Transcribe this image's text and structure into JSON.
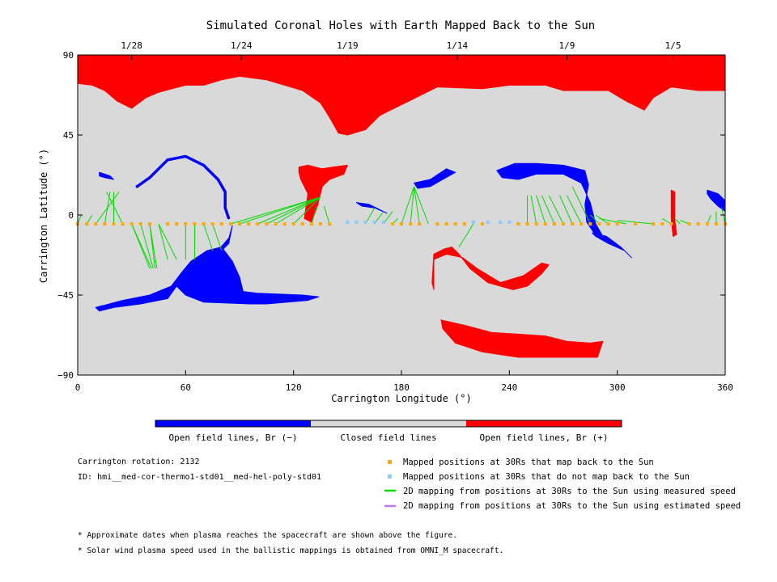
{
  "chart_data": {
    "type": "scatter",
    "title": "Simulated Coronal Holes with Earth Mapped Back to the Sun",
    "xlabel": "Carrington Longitude (°)",
    "ylabel": "Carrington Latitude (°)",
    "xlim": [
      0,
      360
    ],
    "ylim": [
      -90,
      90
    ],
    "xticks": [
      0,
      60,
      120,
      180,
      240,
      300,
      360
    ],
    "yticks": [
      -90,
      -45,
      0,
      45,
      90
    ],
    "xtick_labels": [
      "0",
      "60",
      "120",
      "180",
      "240",
      "300",
      "360"
    ],
    "ytick_labels": [
      "−90",
      "−45",
      "0",
      "45",
      "90"
    ],
    "top_axis": {
      "labels": [
        "1/28",
        "1/24",
        "1/19",
        "1/14",
        "1/9",
        "1/5"
      ],
      "longitudes": [
        30,
        91,
        150,
        211,
        272,
        331
      ]
    },
    "colorbar": {
      "labels": [
        "Open field lines, Br (−)",
        "Closed field lines",
        "Open field lines, Br (+)"
      ],
      "colors": [
        "#0000ff",
        "#d9d9d9",
        "#ff0000"
      ]
    },
    "regions": [
      {
        "polarity": "positive",
        "color": "#ff0000",
        "points": [
          [
            0,
            90
          ],
          [
            360,
            90
          ],
          [
            360,
            70
          ],
          [
            345,
            70
          ],
          [
            330,
            72
          ],
          [
            320,
            66
          ],
          [
            315,
            59
          ],
          [
            305,
            64
          ],
          [
            295,
            70
          ],
          [
            270,
            70
          ],
          [
            260,
            73
          ],
          [
            240,
            73
          ],
          [
            225,
            71
          ],
          [
            200,
            72
          ],
          [
            190,
            67
          ],
          [
            180,
            62
          ],
          [
            168,
            56
          ],
          [
            160,
            48
          ],
          [
            150,
            45
          ],
          [
            145,
            46
          ],
          [
            140,
            55
          ],
          [
            135,
            63
          ],
          [
            125,
            70
          ],
          [
            105,
            76
          ],
          [
            90,
            78
          ],
          [
            80,
            76
          ],
          [
            70,
            73
          ],
          [
            60,
            73
          ],
          [
            45,
            69
          ],
          [
            38,
            66
          ],
          [
            30,
            60
          ],
          [
            22,
            64
          ],
          [
            15,
            70
          ],
          [
            8,
            73
          ],
          [
            0,
            74
          ]
        ]
      },
      {
        "polarity": "positive",
        "color": "#ff0000",
        "points": [
          [
            123,
            27
          ],
          [
            128,
            28
          ],
          [
            136,
            26
          ],
          [
            142,
            27
          ],
          [
            150,
            28
          ],
          [
            148,
            23
          ],
          [
            140,
            20
          ],
          [
            136,
            16
          ],
          [
            133,
            4
          ],
          [
            130,
            -4
          ],
          [
            126,
            -2
          ],
          [
            128,
            12
          ],
          [
            124,
            20
          ],
          [
            123,
            24
          ]
        ]
      },
      {
        "polarity": "positive",
        "color": "#ff0000",
        "points": [
          [
            198,
            -22
          ],
          [
            204,
            -19
          ],
          [
            208,
            -18
          ],
          [
            212,
            -22
          ],
          [
            218,
            -30
          ],
          [
            228,
            -38
          ],
          [
            242,
            -42
          ],
          [
            250,
            -40
          ],
          [
            258,
            -33
          ],
          [
            262,
            -28
          ],
          [
            258,
            -27
          ],
          [
            248,
            -34
          ],
          [
            235,
            -38
          ],
          [
            222,
            -30
          ],
          [
            214,
            -24
          ],
          [
            205,
            -22
          ],
          [
            198,
            -25
          ],
          [
            198,
            -42
          ],
          [
            197,
            -38
          ]
        ]
      },
      {
        "polarity": "positive",
        "color": "#ff0000",
        "points": [
          [
            202,
            -59
          ],
          [
            215,
            -62
          ],
          [
            230,
            -66
          ],
          [
            245,
            -67
          ],
          [
            260,
            -68
          ],
          [
            272,
            -71
          ],
          [
            285,
            -72
          ],
          [
            292,
            -71
          ],
          [
            289,
            -80
          ],
          [
            270,
            -80
          ],
          [
            245,
            -80
          ],
          [
            225,
            -77
          ],
          [
            210,
            -72
          ],
          [
            203,
            -64
          ]
        ]
      },
      {
        "polarity": "positive",
        "color": "#ff0000",
        "points": [
          [
            330,
            14
          ],
          [
            332,
            13
          ],
          [
            332,
            -3
          ],
          [
            333,
            -11
          ],
          [
            331,
            -12
          ],
          [
            330,
            -2
          ]
        ]
      },
      {
        "polarity": "negative",
        "color": "#0000ff",
        "points": [
          [
            10,
            -52
          ],
          [
            25,
            -48
          ],
          [
            40,
            -45
          ],
          [
            52,
            -40
          ],
          [
            58,
            -32
          ],
          [
            63,
            -26
          ],
          [
            72,
            -20
          ],
          [
            80,
            -18
          ],
          [
            86,
            -26
          ],
          [
            90,
            -35
          ],
          [
            92,
            -43
          ],
          [
            100,
            -44
          ],
          [
            125,
            -45
          ],
          [
            134,
            -46
          ],
          [
            128,
            -48
          ],
          [
            105,
            -50
          ],
          [
            96,
            -50
          ],
          [
            70,
            -49
          ],
          [
            60,
            -45
          ],
          [
            55,
            -40
          ],
          [
            50,
            -47
          ],
          [
            35,
            -50
          ],
          [
            20,
            -52
          ],
          [
            12,
            -54
          ]
        ]
      },
      {
        "polarity": "negative",
        "color": "#ff0000",
        "points": []
      },
      {
        "polarity": "negative",
        "color": "#0000ff",
        "points": [
          [
            60,
            -34
          ],
          [
            68,
            -26
          ],
          [
            78,
            -20
          ],
          [
            84,
            -13
          ],
          [
            86,
            -6
          ],
          [
            84,
            -16
          ],
          [
            78,
            -22
          ],
          [
            68,
            -29
          ],
          [
            62,
            -36
          ]
        ]
      },
      {
        "polarity": "negative",
        "color": "#0000ff",
        "points": [
          [
            233,
            25
          ],
          [
            243,
            29
          ],
          [
            255,
            29
          ],
          [
            270,
            28
          ],
          [
            282,
            25
          ],
          [
            284,
            17
          ],
          [
            282,
            6
          ],
          [
            283,
            -4
          ],
          [
            287,
            -10
          ],
          [
            292,
            -12
          ],
          [
            288,
            -5
          ],
          [
            285,
            7
          ],
          [
            280,
            18
          ],
          [
            270,
            23
          ],
          [
            255,
            23
          ],
          [
            245,
            20
          ],
          [
            236,
            21
          ]
        ]
      },
      {
        "polarity": "negative",
        "color": "#0000ff",
        "points": [
          [
            286,
            -10
          ],
          [
            294,
            -12
          ],
          [
            302,
            -18
          ],
          [
            308,
            -24
          ],
          [
            304,
            -20
          ],
          [
            295,
            -16
          ],
          [
            288,
            -12
          ]
        ]
      },
      {
        "polarity": "negative",
        "color": "#0000ff",
        "points": [
          [
            187,
            18
          ],
          [
            196,
            20
          ],
          [
            205,
            26
          ],
          [
            210,
            24
          ],
          [
            203,
            20
          ],
          [
            196,
            16
          ],
          [
            189,
            15
          ]
        ]
      },
      {
        "polarity": "negative",
        "color": "#0000ff",
        "points": [
          [
            12,
            24
          ],
          [
            18,
            22
          ],
          [
            20,
            20
          ],
          [
            15,
            21
          ],
          [
            12,
            22
          ]
        ]
      },
      {
        "polarity": "negative",
        "color": "#0000ff",
        "points": [
          [
            350,
            14
          ],
          [
            356,
            12
          ],
          [
            360,
            8
          ],
          [
            360,
            2
          ],
          [
            356,
            5
          ],
          [
            352,
            9
          ],
          [
            350,
            12
          ]
        ]
      },
      {
        "polarity": "negative",
        "color": "#0000ff",
        "points": [
          [
            155,
            7
          ],
          [
            162,
            6
          ],
          [
            168,
            3
          ],
          [
            172,
            1
          ],
          [
            165,
            4
          ],
          [
            158,
            5
          ]
        ]
      }
    ],
    "arc": {
      "color": "#0000ff",
      "points": [
        [
          33,
          16
        ],
        [
          40,
          21
        ],
        [
          50,
          31
        ],
        [
          60,
          33
        ],
        [
          70,
          28
        ],
        [
          78,
          20
        ],
        [
          82,
          13
        ],
        [
          82,
          4
        ],
        [
          84,
          -2
        ]
      ]
    },
    "orange_points": {
      "name": "Mapped positions at 30Rs that map back to the Sun",
      "color": "#ffaa00",
      "lon": [
        0,
        5,
        10,
        15,
        20,
        25,
        30,
        35,
        40,
        50,
        55,
        60,
        65,
        70,
        75,
        80,
        85,
        90,
        95,
        100,
        105,
        110,
        115,
        120,
        125,
        130,
        135,
        140,
        175,
        180,
        185,
        190,
        200,
        205,
        210,
        215,
        225,
        245,
        250,
        255,
        260,
        265,
        270,
        275,
        280,
        285,
        290,
        295,
        300,
        310,
        320,
        325,
        330,
        340,
        345,
        350,
        355,
        360
      ],
      "lat": -5
    },
    "blue_points": {
      "name": "Mapped positions at 30Rs that do not map back to the Sun",
      "color": "#88ccff",
      "lon": [
        150,
        155,
        160,
        165,
        170,
        220,
        228,
        235,
        240
      ],
      "lat": -4
    },
    "mappings": {
      "name": "2D mapping from positions at 30Rs to the Sun using measured speed",
      "color": "#00dd00",
      "segments": [
        [
          0,
          0,
          2
        ],
        [
          5,
          0,
          8
        ],
        [
          10,
          13,
          23
        ],
        [
          15,
          13,
          18
        ],
        [
          20,
          13,
          20
        ],
        [
          25,
          13,
          16
        ],
        [
          30,
          -30,
          40
        ],
        [
          30,
          -30,
          41
        ],
        [
          35,
          -30,
          42
        ],
        [
          40,
          -30,
          43
        ],
        [
          40,
          -30,
          44
        ],
        [
          45,
          -25,
          50
        ],
        [
          45,
          -25,
          55
        ],
        [
          60,
          -25,
          60
        ],
        [
          65,
          -25,
          65
        ],
        [
          70,
          -20,
          75
        ],
        [
          75,
          -20,
          80
        ],
        [
          85,
          10,
          135
        ],
        [
          90,
          10,
          135
        ],
        [
          100,
          10,
          135
        ],
        [
          105,
          10,
          135
        ],
        [
          110,
          10,
          135
        ],
        [
          120,
          10,
          135
        ],
        [
          130,
          5,
          133
        ],
        [
          140,
          5,
          137
        ],
        [
          160,
          4,
          165
        ],
        [
          165,
          2,
          170
        ],
        [
          170,
          2,
          175
        ],
        [
          175,
          -2,
          178
        ],
        [
          180,
          16,
          187
        ],
        [
          185,
          16,
          187
        ],
        [
          190,
          16,
          187
        ],
        [
          195,
          16,
          187
        ],
        [
          220,
          -18,
          212
        ],
        [
          250,
          11,
          250
        ],
        [
          255,
          11,
          252
        ],
        [
          260,
          11,
          255
        ],
        [
          265,
          11,
          258
        ],
        [
          270,
          11,
          262
        ],
        [
          275,
          11,
          268
        ],
        [
          280,
          11,
          272
        ],
        [
          285,
          16,
          275
        ],
        [
          290,
          0,
          285
        ],
        [
          295,
          0,
          288
        ],
        [
          305,
          -2,
          290
        ],
        [
          320,
          -3,
          300
        ],
        [
          330,
          -2,
          325
        ],
        [
          335,
          -2,
          332
        ],
        [
          340,
          -3,
          335
        ],
        [
          350,
          0,
          352
        ],
        [
          355,
          2,
          355
        ],
        [
          360,
          4,
          358
        ]
      ]
    },
    "legend_entries": [
      "Mapped positions at 30Rs that map back to the Sun",
      "Mapped positions at 30Rs that do not map back to the Sun",
      "2D mapping from positions at 30Rs to the Sun using measured speed",
      "2D mapping from positions at 30Rs to the Sun using estimated speed"
    ],
    "legend_colors": [
      "#ffaa00",
      "#88ccff",
      "#00dd00",
      "#bb77ff"
    ],
    "background_color": "#d9d9d9"
  },
  "info": {
    "rotation": "Carrington rotation: 2132",
    "model_id": "ID: hmi__med-cor-thermo1-std01__med-hel-poly-std01"
  },
  "footnotes": [
    "* Approximate dates when plasma reaches the spacecraft are shown above the figure.",
    "* Solar wind plasma speed used in the ballistic mappings is obtained from OMNI_M spacecraft."
  ]
}
